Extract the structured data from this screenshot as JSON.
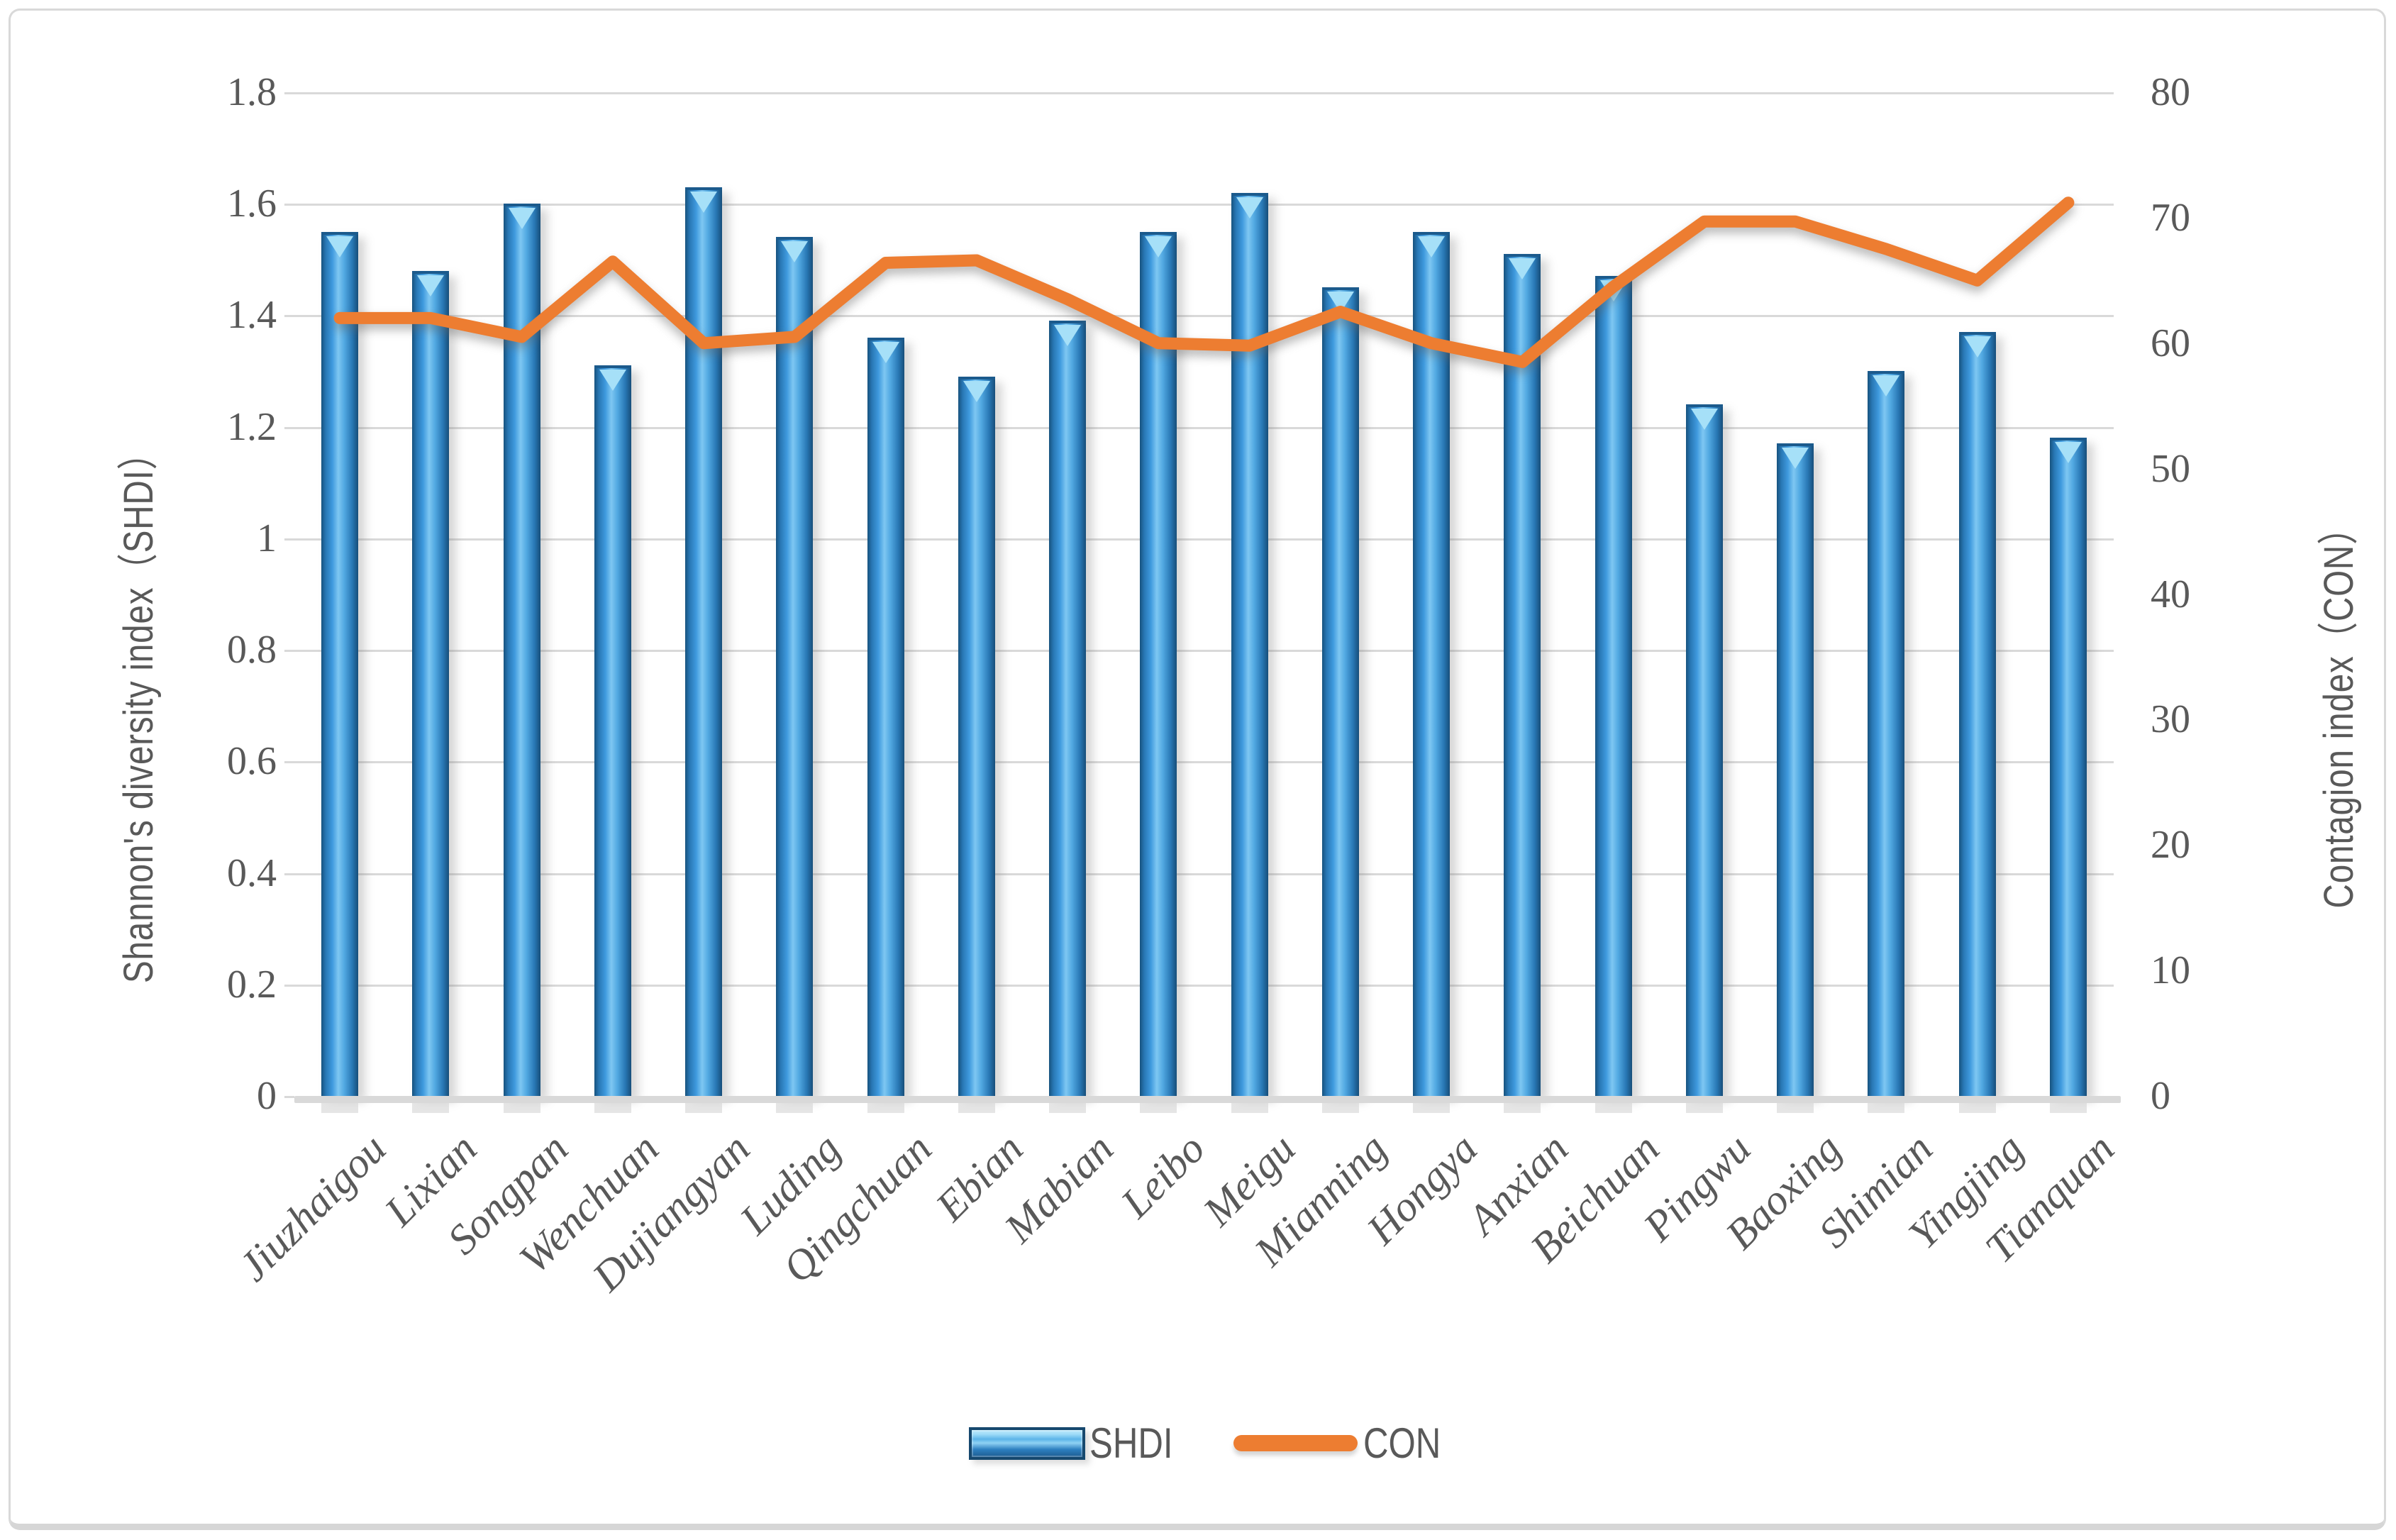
{
  "chart_data": {
    "type": "bar+line",
    "categories": [
      "Jiuzhaigou",
      "Lixian",
      "Songpan",
      "Wenchuan",
      "Dujiangyan",
      "Luding",
      "Qingchuan",
      "Ebian",
      "Mabian",
      "Leibo",
      "Meigu",
      "Mianning",
      "Hongya",
      "Anxian",
      "Beichuan",
      "Pingwu",
      "Baoxing",
      "Shimian",
      "Yingjing",
      "Tianquan"
    ],
    "series": [
      {
        "name": "SHDI",
        "type": "bar",
        "axis": "left",
        "values": [
          1.55,
          1.48,
          1.6,
          1.31,
          1.63,
          1.54,
          1.36,
          1.29,
          1.39,
          1.55,
          1.62,
          1.45,
          1.55,
          1.51,
          1.47,
          1.24,
          1.17,
          1.3,
          1.37,
          1.18
        ]
      },
      {
        "name": "CON",
        "type": "line",
        "axis": "right",
        "values": [
          62,
          62,
          60.5,
          66.5,
          60,
          60.5,
          66.4,
          66.6,
          63.5,
          60,
          59.8,
          62.5,
          60,
          58.5,
          64.5,
          69.7,
          69.7,
          67.5,
          65,
          71.2
        ]
      }
    ],
    "left_axis": {
      "title": "Shannon's diversity index（SHDI）",
      "range": [
        0,
        1.8
      ],
      "ticks": [
        "0",
        "0.2",
        "0.4",
        "0.6",
        "0.8",
        "1",
        "1.2",
        "1.4",
        "1.6",
        "1.8"
      ]
    },
    "right_axis": {
      "title": "Contagion index（CON）",
      "range": [
        0,
        80
      ],
      "ticks": [
        "0",
        "10",
        "20",
        "30",
        "40",
        "50",
        "60",
        "70",
        "80"
      ]
    },
    "legend": {
      "bar_label": "SHDI",
      "line_label": "CON"
    },
    "grid": "horizontal",
    "legend_position": "bottom-center",
    "colors": {
      "bar_main": "#2e86c8",
      "bar_light": "#7ec7f2",
      "bar_dark": "#17527e",
      "line": "#ED7D31",
      "gridline": "#d9d9d9",
      "text": "#595959"
    }
  }
}
